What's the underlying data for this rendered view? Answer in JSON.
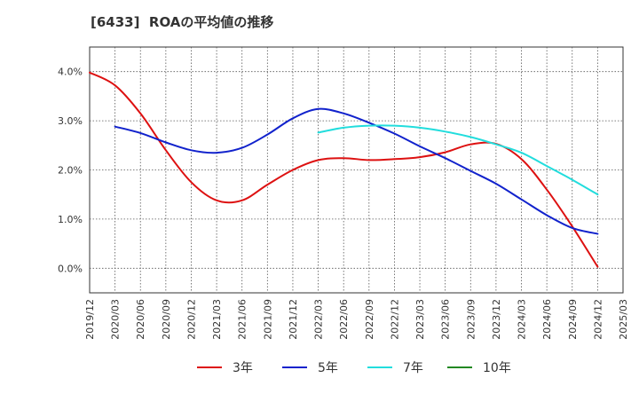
{
  "chart_data": {
    "type": "line",
    "title": "[6433]  ROAの平均値の推移",
    "xlabel": "",
    "ylabel": "",
    "x_ticks": [
      "2019/12",
      "2020/03",
      "2020/06",
      "2020/09",
      "2020/12",
      "2021/03",
      "2021/06",
      "2021/09",
      "2021/12",
      "2022/03",
      "2022/06",
      "2022/09",
      "2022/12",
      "2023/03",
      "2023/06",
      "2023/09",
      "2023/12",
      "2024/03",
      "2024/06",
      "2024/09",
      "2024/12",
      "2025/03"
    ],
    "y_ticks": [
      "0.0%",
      "1.0%",
      "2.0%",
      "3.0%",
      "4.0%"
    ],
    "y_tick_values": [
      0,
      1,
      2,
      3,
      4
    ],
    "ylim": [
      -0.5,
      4.5
    ],
    "grid": true,
    "legend_position": "bottom",
    "series": [
      {
        "name": "3年",
        "color": "#dd1111",
        "x": [
          "2019/12",
          "2020/03",
          "2020/06",
          "2020/09",
          "2020/12",
          "2021/03",
          "2021/06",
          "2021/09",
          "2021/12",
          "2022/03",
          "2022/06",
          "2022/09",
          "2022/12",
          "2023/03",
          "2023/06",
          "2023/09",
          "2023/12",
          "2024/03",
          "2024/06",
          "2024/09",
          "2024/12"
        ],
        "values": [
          3.98,
          3.72,
          3.15,
          2.4,
          1.75,
          1.38,
          1.38,
          1.7,
          2.0,
          2.2,
          2.24,
          2.2,
          2.22,
          2.26,
          2.36,
          2.52,
          2.53,
          2.22,
          1.6,
          0.85,
          0.03
        ]
      },
      {
        "name": "5年",
        "color": "#1122cc",
        "x": [
          "2020/03",
          "2020/06",
          "2020/09",
          "2020/12",
          "2021/03",
          "2021/06",
          "2021/09",
          "2021/12",
          "2022/03",
          "2022/06",
          "2022/09",
          "2022/12",
          "2023/03",
          "2023/06",
          "2023/09",
          "2023/12",
          "2024/03",
          "2024/06",
          "2024/09",
          "2024/12"
        ],
        "values": [
          2.88,
          2.75,
          2.56,
          2.4,
          2.35,
          2.45,
          2.72,
          3.05,
          3.24,
          3.15,
          2.96,
          2.74,
          2.48,
          2.24,
          1.98,
          1.72,
          1.4,
          1.08,
          0.82,
          0.7
        ]
      },
      {
        "name": "7年",
        "color": "#22dddd",
        "x": [
          "2022/03",
          "2022/06",
          "2022/09",
          "2022/12",
          "2023/03",
          "2023/06",
          "2023/09",
          "2023/12",
          "2024/03",
          "2024/06",
          "2024/09",
          "2024/12"
        ],
        "values": [
          2.76,
          2.86,
          2.9,
          2.9,
          2.86,
          2.78,
          2.67,
          2.52,
          2.35,
          2.08,
          1.8,
          1.5
        ]
      },
      {
        "name": "10年",
        "color": "#228822",
        "x": [],
        "values": []
      }
    ]
  }
}
